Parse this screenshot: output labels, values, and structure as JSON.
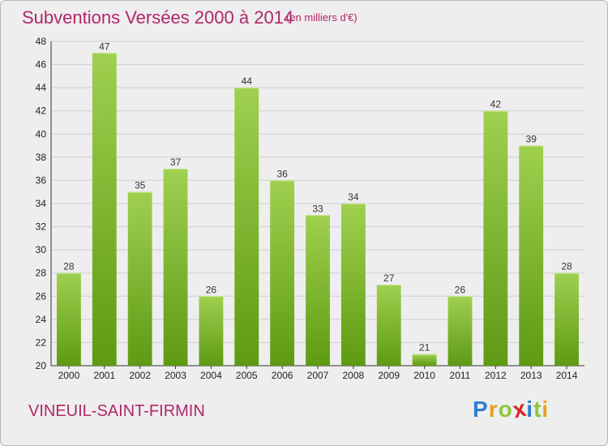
{
  "header": {
    "title": "Subventions Versées 2000 à 2014",
    "subtitle": "(en milliers d'€)"
  },
  "footer": {
    "commune": "VINEUIL-SAINT-FIRMIN",
    "logo_letters": [
      {
        "ch": "P",
        "color": "#2e7fd0"
      },
      {
        "ch": "r",
        "color": "#e8a020"
      },
      {
        "ch": "o",
        "color": "#8cc63e"
      },
      {
        "ch": "x",
        "color": "#d8232a"
      },
      {
        "ch": "i",
        "color": "#2e7fd0"
      },
      {
        "ch": "t",
        "color": "#8cc63e"
      },
      {
        "ch": "i",
        "color": "#e8a020"
      }
    ]
  },
  "chart_data": {
    "type": "bar",
    "title": "Subventions Versées 2000 à 2014",
    "subtitle": "(en milliers d'€)",
    "categories": [
      "2000",
      "2001",
      "2002",
      "2003",
      "2004",
      "2005",
      "2006",
      "2007",
      "2008",
      "2009",
      "2010",
      "2011",
      "2012",
      "2013",
      "2014"
    ],
    "values": [
      28,
      47,
      35,
      37,
      26,
      44,
      36,
      33,
      34,
      27,
      21,
      26,
      42,
      39,
      28
    ],
    "ylim": [
      20,
      48
    ],
    "yticks": [
      20,
      22,
      24,
      26,
      28,
      30,
      32,
      34,
      36,
      38,
      40,
      42,
      44,
      46,
      48
    ],
    "grid": true,
    "bar_color_top": "#9fd04f",
    "bar_color_bottom": "#5e9a14",
    "grid_color": "#cfcfcf"
  }
}
